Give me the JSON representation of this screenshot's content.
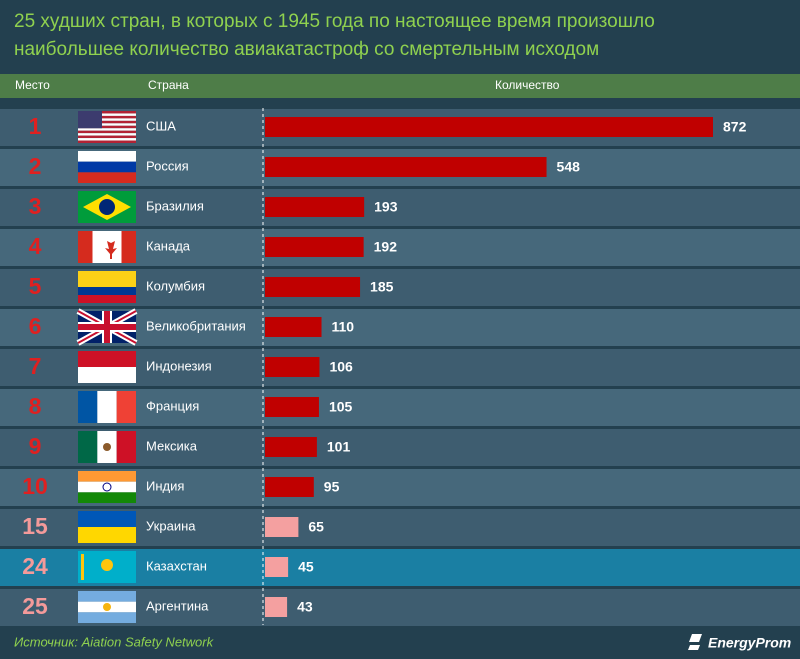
{
  "chart_data": {
    "type": "bar",
    "title": [
      "25 худших стран, в которых с 1945 года по настоящее время произошло",
      "наибольшее количество авиакатастроф со смертельным исходом"
    ],
    "headers": [
      "Место",
      "Страна",
      "Количество"
    ],
    "ranks": [
      "1",
      "2",
      "3",
      "4",
      "5",
      "6",
      "7",
      "8",
      "9",
      "10",
      "15",
      "24",
      "25"
    ],
    "categories": [
      "США",
      "Россия",
      "Бразилия",
      "Канада",
      "Колумбия",
      "Великобритания",
      "Индонезия",
      "Франция",
      "Мексика",
      "Индия",
      "Украина",
      "Казахстан",
      "Аргентина"
    ],
    "values": [
      872,
      548,
      193,
      192,
      185,
      110,
      106,
      105,
      101,
      95,
      65,
      45,
      43
    ],
    "colors": [
      "#c00000",
      "#c00000",
      "#c00000",
      "#c00000",
      "#c00000",
      "#c00000",
      "#c00000",
      "#c00000",
      "#c00000",
      "#c00000",
      "#f4a0a0",
      "#f4a0a0",
      "#f4a0a0"
    ],
    "rank_colors": [
      "#e02020",
      "#e02020",
      "#e02020",
      "#e02020",
      "#e02020",
      "#e02020",
      "#e02020",
      "#e02020",
      "#e02020",
      "#e02020",
      "#f49a9a",
      "#f49a9a",
      "#f49a9a"
    ],
    "highlight_index": 11,
    "source": "Источник: Aiation Safety Network",
    "logo": "EnergyProm"
  }
}
